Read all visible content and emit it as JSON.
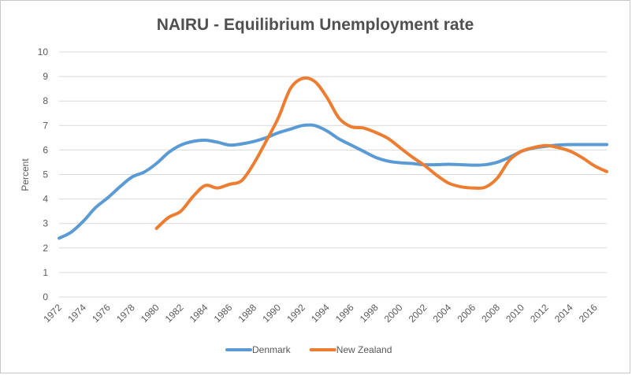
{
  "chart_data": {
    "type": "line",
    "title": "NAIRU - Equilibrium  Unemployment  rate",
    "xlabel": "",
    "ylabel": "Percent",
    "ylim": [
      0,
      10
    ],
    "xlim": [
      1972,
      2017
    ],
    "yticks": [
      "0",
      "1",
      "2",
      "3",
      "4",
      "5",
      "6",
      "7",
      "8",
      "9",
      "10"
    ],
    "xticks": [
      "1972",
      "1974",
      "1976",
      "1978",
      "1980",
      "1982",
      "1984",
      "1986",
      "1988",
      "1990",
      "1992",
      "1994",
      "1996",
      "1998",
      "2000",
      "2002",
      "2004",
      "2006",
      "2008",
      "2010",
      "2012",
      "2014",
      "2016"
    ],
    "grid": true,
    "legend": "bottom",
    "series": [
      {
        "name": "Denmark",
        "color": "#5B9BD5",
        "x": [
          1972,
          1973,
          1974,
          1975,
          1976,
          1977,
          1978,
          1979,
          1980,
          1981,
          1982,
          1983,
          1984,
          1985,
          1986,
          1987,
          1988,
          1989,
          1990,
          1991,
          1992,
          1993,
          1994,
          1995,
          1996,
          1997,
          1998,
          1999,
          2000,
          2001,
          2002,
          2003,
          2004,
          2005,
          2006,
          2007,
          2008,
          2009,
          2010,
          2011,
          2012,
          2013,
          2014,
          2015,
          2016,
          2017
        ],
        "y": [
          2.4,
          2.65,
          3.1,
          3.65,
          4.05,
          4.5,
          4.9,
          5.1,
          5.45,
          5.9,
          6.2,
          6.35,
          6.4,
          6.32,
          6.2,
          6.25,
          6.35,
          6.5,
          6.7,
          6.85,
          7.0,
          7.0,
          6.78,
          6.45,
          6.2,
          5.95,
          5.7,
          5.55,
          5.48,
          5.45,
          5.4,
          5.4,
          5.42,
          5.4,
          5.38,
          5.4,
          5.5,
          5.7,
          5.95,
          6.08,
          6.15,
          6.2,
          6.22,
          6.22,
          6.22,
          6.22
        ]
      },
      {
        "name": "New Zealand",
        "color": "#ED7D31",
        "x": [
          1980,
          1981,
          1982,
          1983,
          1984,
          1985,
          1986,
          1987,
          1988,
          1989,
          1990,
          1991,
          1992,
          1993,
          1994,
          1995,
          1996,
          1997,
          1998,
          1999,
          2000,
          2001,
          2002,
          2003,
          2004,
          2005,
          2006,
          2007,
          2008,
          2009,
          2010,
          2011,
          2012,
          2013,
          2014,
          2015,
          2016,
          2017
        ],
        "y": [
          2.8,
          3.25,
          3.5,
          4.1,
          4.55,
          4.45,
          4.6,
          4.75,
          5.45,
          6.35,
          7.3,
          8.5,
          8.92,
          8.8,
          8.15,
          7.3,
          6.95,
          6.9,
          6.72,
          6.48,
          6.1,
          5.72,
          5.38,
          4.98,
          4.65,
          4.5,
          4.45,
          4.48,
          4.85,
          5.58,
          5.95,
          6.1,
          6.18,
          6.1,
          5.95,
          5.68,
          5.35,
          5.12
        ]
      }
    ]
  }
}
